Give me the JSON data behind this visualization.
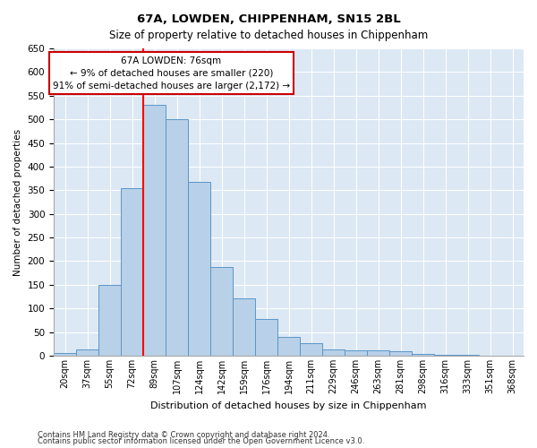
{
  "title": "67A, LOWDEN, CHIPPENHAM, SN15 2BL",
  "subtitle": "Size of property relative to detached houses in Chippenham",
  "xlabel": "Distribution of detached houses by size in Chippenham",
  "ylabel": "Number of detached properties",
  "footer1": "Contains HM Land Registry data © Crown copyright and database right 2024.",
  "footer2": "Contains public sector information licensed under the Open Government Licence v3.0.",
  "categories": [
    "20sqm",
    "37sqm",
    "55sqm",
    "72sqm",
    "89sqm",
    "107sqm",
    "124sqm",
    "142sqm",
    "159sqm",
    "176sqm",
    "194sqm",
    "211sqm",
    "229sqm",
    "246sqm",
    "263sqm",
    "281sqm",
    "298sqm",
    "316sqm",
    "333sqm",
    "351sqm",
    "368sqm"
  ],
  "values": [
    5,
    13,
    150,
    355,
    530,
    500,
    368,
    187,
    122,
    77,
    40,
    27,
    13,
    12,
    12,
    10,
    3,
    1,
    1,
    0,
    0
  ],
  "bar_color": "#b8d0e8",
  "bar_edge_color": "#5a96c8",
  "bg_color": "#dce8f4",
  "red_line_x": 3.5,
  "annotation_line1": "67A LOWDEN: 76sqm",
  "annotation_line2": "← 9% of detached houses are smaller (220)",
  "annotation_line3": "91% of semi-detached houses are larger (2,172) →",
  "annotation_box_color": "#ffffff",
  "annotation_box_edge": "#cc0000",
  "ylim": [
    0,
    650
  ],
  "yticks": [
    0,
    50,
    100,
    150,
    200,
    250,
    300,
    350,
    400,
    450,
    500,
    550,
    600,
    650
  ]
}
